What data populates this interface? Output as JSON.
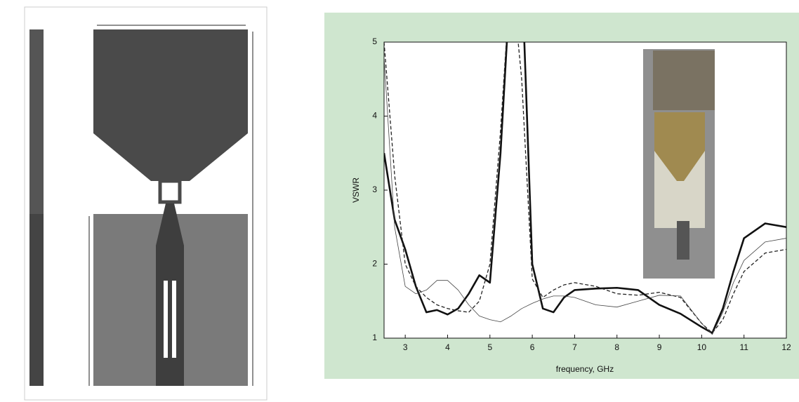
{
  "chart_data": {
    "type": "line",
    "xlabel": "frequency, GHz",
    "ylabel": "VSWR",
    "xlim": [
      2.5,
      12
    ],
    "ylim": [
      1,
      5
    ],
    "xticks": [
      3,
      4,
      5,
      6,
      7,
      8,
      9,
      10,
      11,
      12
    ],
    "yticks": [
      1,
      2,
      3,
      4,
      5
    ],
    "x": [
      2.5,
      2.75,
      3,
      3.25,
      3.5,
      3.75,
      4,
      4.25,
      4.5,
      4.75,
      5,
      5.25,
      5.5,
      5.75,
      6,
      6.25,
      6.5,
      6.75,
      7,
      7.5,
      8,
      8.5,
      9,
      9.5,
      10,
      10.25,
      10.5,
      10.75,
      11,
      11.5,
      12
    ],
    "series": [
      {
        "color": "#111111",
        "style": "thick",
        "values": [
          3.5,
          2.6,
          2.2,
          1.7,
          1.35,
          1.38,
          1.32,
          1.4,
          1.6,
          1.85,
          1.75,
          3.5,
          6,
          6,
          2.0,
          1.4,
          1.35,
          1.55,
          1.65,
          1.67,
          1.68,
          1.65,
          1.45,
          1.33,
          1.15,
          1.07,
          1.4,
          1.9,
          2.35,
          2.55,
          2.5
        ]
      },
      {
        "color": "#222222",
        "style": "dashed",
        "values": [
          5,
          3.2,
          2.0,
          1.7,
          1.55,
          1.45,
          1.4,
          1.37,
          1.35,
          1.5,
          2.0,
          3.8,
          6,
          4.5,
          1.8,
          1.55,
          1.65,
          1.72,
          1.75,
          1.7,
          1.6,
          1.58,
          1.62,
          1.55,
          1.2,
          1.07,
          1.25,
          1.6,
          1.9,
          2.15,
          2.2
        ]
      },
      {
        "color": "#444444",
        "style": "thin",
        "values": [
          4.8,
          2.5,
          1.7,
          1.6,
          1.65,
          1.78,
          1.78,
          1.65,
          1.45,
          1.3,
          1.25,
          1.22,
          1.3,
          1.4,
          1.47,
          1.53,
          1.57,
          1.57,
          1.55,
          1.45,
          1.42,
          1.5,
          1.58,
          1.57,
          1.2,
          1.05,
          1.35,
          1.75,
          2.05,
          2.3,
          2.35
        ]
      }
    ]
  }
}
